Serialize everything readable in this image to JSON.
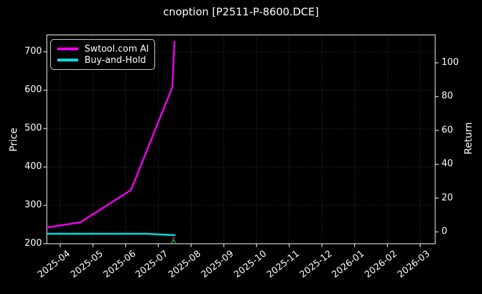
{
  "title": "cnoption [P2511-P-8600.DCE]",
  "colors": {
    "background": "#000000",
    "text": "#ffffff",
    "grid": "#3b3b3b",
    "spine": "#ffffff"
  },
  "chart_data": {
    "type": "line",
    "title": "cnoption [P2511-P-8600.DCE]",
    "xlabel": "",
    "ylabel_left": "Price",
    "ylabel_right": "Return",
    "grid": true,
    "grid_style": "dotted",
    "legend_position": "upper left",
    "xticks": [
      "2025-04",
      "2025-05",
      "2025-06",
      "2025-07",
      "2025-08",
      "2025-09",
      "2025-10",
      "2025-11",
      "2025-12",
      "2026-01",
      "2026-02",
      "2026-03"
    ],
    "xlim": [
      "2025-03-19",
      "2026-03-15"
    ],
    "yticks_left": [
      200,
      300,
      400,
      500,
      600,
      700
    ],
    "ylim_left": [
      200,
      744
    ],
    "yticks_right": [
      0,
      20,
      40,
      60,
      80,
      100
    ],
    "ylim_right": [
      -7,
      116.5
    ],
    "series": [
      {
        "name": "Swtool.com AI",
        "color": "#ee00ee",
        "axis": "left",
        "points": [
          [
            "2025-03-19",
            242
          ],
          [
            "2025-04-20",
            256
          ],
          [
            "2025-06-06",
            340
          ],
          [
            "2025-07-14",
            608
          ],
          [
            "2025-07-16",
            728
          ]
        ]
      },
      {
        "name": "Buy-and-Hold",
        "color": "#00dede",
        "axis": "left",
        "points": [
          [
            "2025-03-19",
            226
          ],
          [
            "2025-06-20",
            226
          ],
          [
            "2025-07-17",
            222
          ]
        ]
      }
    ],
    "markers": [
      {
        "type": "sell",
        "shape": "tick-down",
        "color": "#c62828",
        "point": [
          "2025-07-15",
          214
        ]
      },
      {
        "type": "buy",
        "shape": "caret-up",
        "color": "#1faa3c",
        "point": [
          "2025-07-15",
          206
        ]
      }
    ]
  }
}
